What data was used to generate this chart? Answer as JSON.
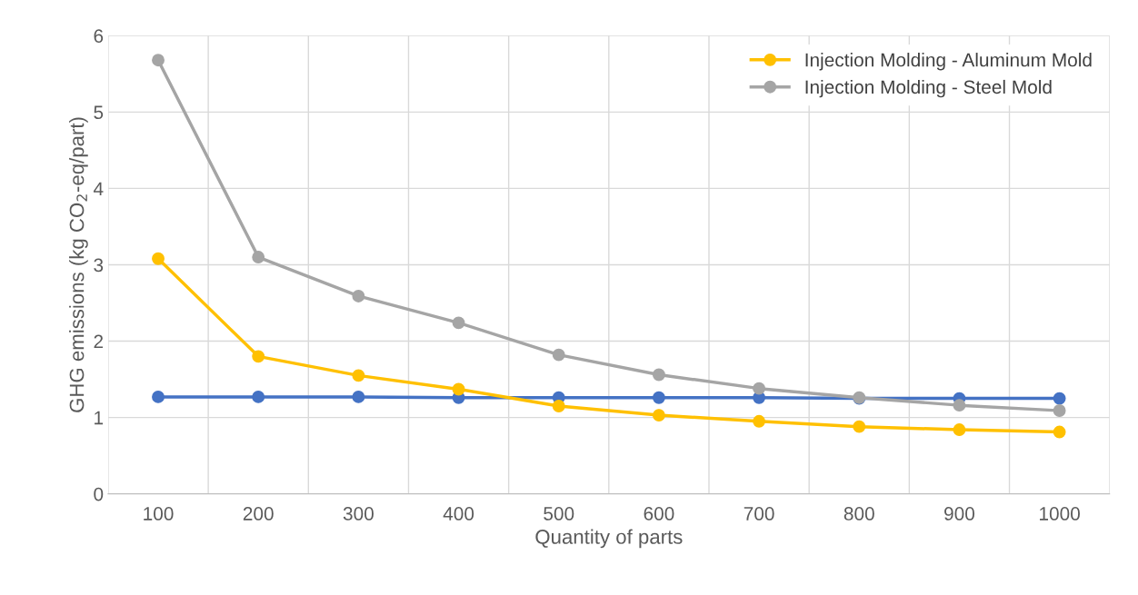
{
  "chart_data": {
    "type": "line",
    "xlabel": "Quantity of parts",
    "ylabel": "GHG emissions (kg CO$_{2}$-eq/part)",
    "categories": [
      "100",
      "200",
      "300",
      "400",
      "500",
      "600",
      "700",
      "800",
      "900",
      "1000"
    ],
    "series": [
      {
        "color": "#4472c4",
        "values": [
          1.27,
          1.27,
          1.27,
          1.26,
          1.26,
          1.26,
          1.26,
          1.25,
          1.25,
          1.25
        ]
      },
      {
        "name": "Injection Molding - Aluminum Mold",
        "color": "#ffc000",
        "values": [
          3.08,
          1.8,
          1.55,
          1.37,
          1.15,
          1.03,
          0.95,
          0.88,
          0.84,
          0.81
        ]
      },
      {
        "name": "Injection Molding - Steel Mold",
        "color": "#a5a5a5",
        "values": [
          5.68,
          3.1,
          2.59,
          2.24,
          1.82,
          1.56,
          1.38,
          1.26,
          1.16,
          1.09
        ]
      }
    ],
    "ylim": [
      0,
      6
    ],
    "yticks": [
      0,
      1,
      2,
      3,
      4,
      5,
      6
    ],
    "grid": true,
    "legend": "top right",
    "marker": "circle",
    "line_style": "solid"
  }
}
